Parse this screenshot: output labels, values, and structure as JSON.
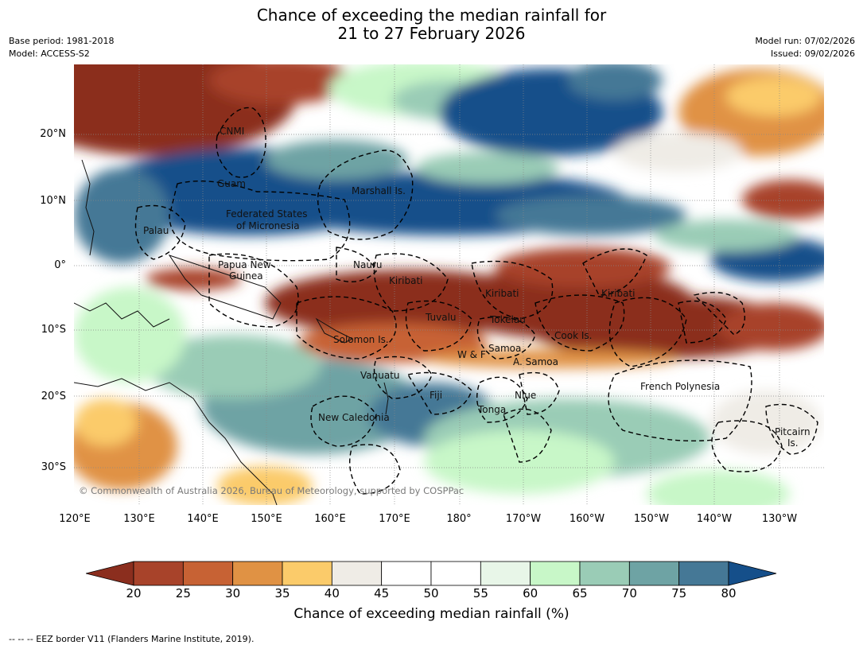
{
  "title": {
    "line1": "Chance of exceeding the median rainfall for",
    "line2": "21 to 27 February 2026"
  },
  "meta": {
    "base_period": "Base period: 1981-2018",
    "model": "Model: ACCESS-S2",
    "model_run": "Model run: 07/02/2026",
    "issued": "Issued: 09/02/2026"
  },
  "axes": {
    "lat_ticks": [
      "20°N",
      "10°N",
      "0°",
      "10°S",
      "20°S",
      "30°S"
    ],
    "lon_ticks": [
      "120°E",
      "130°E",
      "140°E",
      "150°E",
      "160°E",
      "170°E",
      "180°",
      "170°W",
      "160°W",
      "150°W",
      "140°W",
      "130°W"
    ]
  },
  "places": {
    "cnmi": "CNMI",
    "guam": "Guam",
    "marshall": "Marshall Is.",
    "fsm1": "Federated States",
    "fsm2": "of Micronesia",
    "palau": "Palau",
    "png1": "Papua New",
    "png2": "Guinea",
    "nauru": "Nauru",
    "kiribati_w": "Kiribati",
    "kiribati_c": "Kiribati",
    "kiribati_e": "Kiribati",
    "tuvalu": "Tuvalu",
    "tokelau": "Tokelau",
    "solomon": "Solomon Is.",
    "cook": "Cook Is.",
    "samoa": "Samoa",
    "wf": "W & F",
    "asamoa": "A. Samoa",
    "vanuatu": "Vanuatu",
    "fiji": "Fiji",
    "niue": "Niue",
    "french_polynesia": "French Polynesia",
    "new_caledonia": "New Caledonia",
    "tonga": "Tonga",
    "pitcairn1": "Pitcairn",
    "pitcairn2": "Is."
  },
  "copyright": "© Commonwealth of Australia 2026, Bureau of Meteorology, supported by COSPPac",
  "colorbar": {
    "ticks": [
      "20",
      "25",
      "30",
      "35",
      "40",
      "45",
      "50",
      "55",
      "60",
      "65",
      "70",
      "75",
      "80"
    ],
    "colors": [
      "#8b2e1e",
      "#a8432a",
      "#c76234",
      "#e09244",
      "#fbcb6a",
      "#efece6",
      "#ffffff",
      "#ffffff",
      "#e8f6e8",
      "#c8f7c8",
      "#9accb6",
      "#6ea3a4",
      "#457896",
      "#154f8a"
    ],
    "label": "Chance of exceeding median rainfall (%)"
  },
  "footnote": "--  --  -- EEZ border V11 (Flanders Marine Institute, 2019)."
}
